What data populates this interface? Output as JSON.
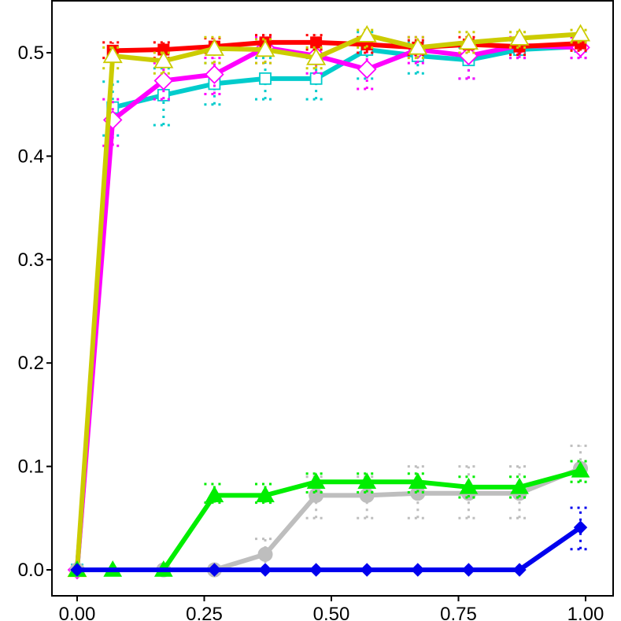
{
  "chart_data": {
    "type": "line",
    "title": "",
    "xlabel": "",
    "ylabel": "",
    "xlim": [
      -0.05,
      1.0
    ],
    "ylim": [
      -0.025,
      0.55
    ],
    "x_ticks": [
      {
        "value": 0.0,
        "label": "0.00"
      },
      {
        "value": 0.25,
        "label": "0.25"
      },
      {
        "value": 0.5,
        "label": "0.50"
      },
      {
        "value": 0.75,
        "label": "0.75"
      },
      {
        "value": 1.0,
        "label": "1.00"
      }
    ],
    "y_ticks": [
      {
        "value": 0.0,
        "label": "0.0"
      },
      {
        "value": 0.1,
        "label": "0.1"
      },
      {
        "value": 0.2,
        "label": "0.2"
      },
      {
        "value": 0.3,
        "label": "0.3"
      },
      {
        "value": 0.4,
        "label": "0.4"
      },
      {
        "value": 0.5,
        "label": "0.5"
      }
    ],
    "grid": false,
    "legend": "none",
    "series": [
      {
        "key": "cyan",
        "color": "#00cccc",
        "marker": "open-square",
        "x": [
          0.0,
          0.07,
          0.17,
          0.27,
          0.37,
          0.47,
          0.57,
          0.67,
          0.77,
          0.87,
          0.99
        ],
        "y": [
          0.0,
          0.447,
          0.459,
          0.47,
          0.475,
          0.475,
          0.503,
          0.497,
          0.493,
          0.503,
          0.506
        ],
        "err_low": [
          0.0,
          0.42,
          0.43,
          0.45,
          0.455,
          0.455,
          0.475,
          0.48,
          0.475,
          0.495,
          0.495
        ],
        "err_high": [
          0.0,
          0.472,
          0.485,
          0.49,
          0.495,
          0.495,
          0.52,
          0.51,
          0.505,
          0.512,
          0.515
        ]
      },
      {
        "key": "magenta",
        "color": "#ff00ff",
        "marker": "open-diamond",
        "x": [
          0.0,
          0.07,
          0.17,
          0.27,
          0.37,
          0.47,
          0.57,
          0.67,
          0.77,
          0.87,
          0.99
        ],
        "y": [
          0.0,
          0.435,
          0.473,
          0.479,
          0.505,
          0.497,
          0.484,
          0.503,
          0.497,
          0.507,
          0.505
        ],
        "err_low": [
          0.0,
          0.41,
          0.455,
          0.46,
          0.49,
          0.48,
          0.465,
          0.49,
          0.475,
          0.495,
          0.495
        ],
        "err_high": [
          0.0,
          0.455,
          0.49,
          0.495,
          0.515,
          0.51,
          0.5,
          0.515,
          0.51,
          0.515,
          0.515
        ]
      },
      {
        "key": "red",
        "color": "#ff0000",
        "marker": "filled-square",
        "x": [
          0.07,
          0.17,
          0.27,
          0.37,
          0.47,
          0.57,
          0.67,
          0.77,
          0.87,
          0.99
        ],
        "y": [
          0.502,
          0.503,
          0.506,
          0.51,
          0.51,
          0.508,
          0.505,
          0.508,
          0.506,
          0.509
        ],
        "err_low": [
          0.495,
          0.495,
          0.5,
          0.503,
          0.503,
          0.5,
          0.498,
          0.5,
          0.498,
          0.502
        ],
        "err_high": [
          0.51,
          0.51,
          0.514,
          0.517,
          0.517,
          0.515,
          0.512,
          0.515,
          0.513,
          0.516
        ]
      },
      {
        "key": "olive",
        "color": "#cccc00",
        "marker": "open-triangle",
        "x": [
          0.0,
          0.07,
          0.17,
          0.27,
          0.37,
          0.47,
          0.57,
          0.67,
          0.77,
          0.87,
          0.99
        ],
        "y": [
          0.0,
          0.497,
          0.492,
          0.504,
          0.503,
          0.495,
          0.517,
          0.505,
          0.51,
          0.514,
          0.518
        ],
        "err_low": [
          0.0,
          0.485,
          0.48,
          0.49,
          0.49,
          0.485,
          0.505,
          0.495,
          0.5,
          0.505,
          0.51
        ],
        "err_high": [
          0.0,
          0.505,
          0.5,
          0.515,
          0.513,
          0.505,
          0.522,
          0.515,
          0.52,
          0.52,
          0.522
        ]
      },
      {
        "key": "gray",
        "color": "#bebebe",
        "marker": "filled-circle",
        "x": [
          0.0,
          0.17,
          0.27,
          0.37,
          0.47,
          0.57,
          0.67,
          0.77,
          0.87,
          0.99
        ],
        "y": [
          0.0,
          0.0,
          0.0,
          0.015,
          0.072,
          0.072,
          0.074,
          0.074,
          0.074,
          0.098
        ],
        "err_low": [
          0.0,
          0.0,
          0.0,
          0.0,
          0.05,
          0.05,
          0.05,
          0.05,
          0.05,
          0.085
        ],
        "err_high": [
          0.0,
          0.0,
          0.0,
          0.03,
          0.09,
          0.09,
          0.1,
          0.1,
          0.1,
          0.12
        ]
      },
      {
        "key": "green",
        "color": "#00ee00",
        "marker": "filled-triangle",
        "x": [
          0.0,
          0.07,
          0.17,
          0.27,
          0.37,
          0.47,
          0.57,
          0.67,
          0.77,
          0.87,
          0.99
        ],
        "y": [
          0.0,
          0.0,
          0.0,
          0.072,
          0.072,
          0.085,
          0.085,
          0.085,
          0.08,
          0.08,
          0.096
        ],
        "err_low": [
          0.0,
          0.0,
          0.0,
          0.065,
          0.065,
          0.075,
          0.075,
          0.075,
          0.07,
          0.07,
          0.085
        ],
        "err_high": [
          0.0,
          0.0,
          0.0,
          0.083,
          0.083,
          0.093,
          0.093,
          0.093,
          0.09,
          0.09,
          0.105
        ]
      },
      {
        "key": "blue",
        "color": "#0000ee",
        "marker": "filled-diamond",
        "x": [
          0.0,
          0.27,
          0.37,
          0.47,
          0.57,
          0.67,
          0.77,
          0.87,
          0.99
        ],
        "y": [
          0.0,
          0.0,
          0.0,
          0.0,
          0.0,
          0.0,
          0.0,
          0.0,
          0.041
        ],
        "err_low": [
          0.0,
          0.0,
          0.0,
          0.0,
          0.0,
          0.0,
          0.0,
          0.0,
          0.02
        ],
        "err_high": [
          0.0,
          0.0,
          0.0,
          0.0,
          0.0,
          0.0,
          0.0,
          0.0,
          0.06
        ]
      }
    ]
  }
}
